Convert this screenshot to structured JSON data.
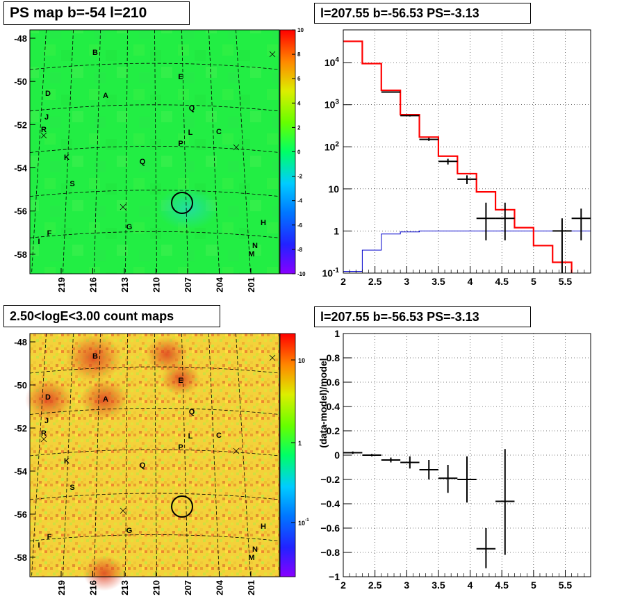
{
  "titles": {
    "tl": "PS map b=-54 l=210",
    "tr": "l=207.55 b=-56.53 PS=-3.13",
    "bl": "2.50<logE<3.00 count maps",
    "br": "l=207.55 b=-56.53 PS=-3.13"
  },
  "colors": {
    "model": "#ff0000",
    "background": "#0000cc",
    "data": "#000000"
  },
  "chart_data": [
    {
      "type": "heatmap",
      "title": "PS map b=-54 l=210",
      "xlabel": "",
      "ylabel": "",
      "x_ticks": [
        "219",
        "216",
        "213",
        "210",
        "207",
        "204",
        "201"
      ],
      "y_ticks": [
        "-48",
        "-50",
        "-52",
        "-54",
        "-56",
        "-58"
      ],
      "colorbar_ticks": [
        "10",
        "8",
        "6",
        "4",
        "2",
        "0",
        "-2",
        "-4",
        "-6",
        "-8",
        "-10"
      ],
      "colorbar_range": [
        -10,
        10
      ],
      "sources": [
        "B",
        "E",
        "D",
        "A",
        "Q",
        "J",
        "R",
        "L",
        "C",
        "P",
        "K",
        "Q",
        "S",
        "G",
        "H",
        "F",
        "I",
        "N",
        "M"
      ],
      "circle_position": {
        "l": 207.55,
        "b": -56.53
      }
    },
    {
      "type": "line",
      "title": "l=207.55 b=-56.53 PS=-3.13",
      "xlabel": "",
      "ylabel": "",
      "ylog": true,
      "xlim": [
        2,
        5.9
      ],
      "ylim": [
        0.1,
        60000
      ],
      "x_ticks": [
        "2",
        "2.5",
        "3",
        "3.5",
        "4",
        "4.5",
        "5",
        "5.5"
      ],
      "y_ticks": [
        "10^-1",
        "1",
        "10",
        "10^2",
        "10^3",
        "10^4"
      ],
      "series": [
        {
          "values": [
            {
              "x0": 2.0,
              "x1": 2.3,
              "y": 32000
            },
            {
              "x0": 2.3,
              "x1": 2.6,
              "y": 9500
            },
            {
              "x0": 2.6,
              "x1": 2.9,
              "y": 2200
            },
            {
              "x0": 2.9,
              "x1": 3.2,
              "y": 580
            },
            {
              "x0": 3.2,
              "x1": 3.5,
              "y": 170
            },
            {
              "x0": 3.5,
              "x1": 3.8,
              "y": 60
            },
            {
              "x0": 3.8,
              "x1": 4.1,
              "y": 23
            },
            {
              "x0": 4.1,
              "x1": 4.4,
              "y": 8.5
            },
            {
              "x0": 4.4,
              "x1": 4.7,
              "y": 3.2
            },
            {
              "x0": 4.7,
              "x1": 5.0,
              "y": 1.2
            },
            {
              "x0": 5.0,
              "x1": 5.3,
              "y": 0.45
            },
            {
              "x0": 5.3,
              "x1": 5.6,
              "y": 0.18
            },
            {
              "x0": 5.6,
              "x1": 5.9,
              "y": 0.07
            }
          ]
        },
        {
          "values": [
            {
              "x0": 2.0,
              "x1": 2.3,
              "y": 0.11
            },
            {
              "x0": 2.3,
              "x1": 2.6,
              "y": 0.35
            },
            {
              "x0": 2.6,
              "x1": 2.9,
              "y": 0.85
            },
            {
              "x0": 2.9,
              "x1": 3.2,
              "y": 0.95
            },
            {
              "x0": 3.2,
              "x1": 3.5,
              "y": 1.0
            },
            {
              "x0": 3.5,
              "x1": 3.8,
              "y": 1.0
            },
            {
              "x0": 3.8,
              "x1": 4.1,
              "y": 1.0
            },
            {
              "x0": 4.1,
              "x1": 4.4,
              "y": 1.0
            },
            {
              "x0": 4.4,
              "x1": 4.7,
              "y": 1.0
            },
            {
              "x0": 4.7,
              "x1": 5.0,
              "y": 1.0
            },
            {
              "x0": 5.0,
              "x1": 5.3,
              "y": 1.0
            },
            {
              "x0": 5.3,
              "x1": 5.6,
              "y": 1.0
            },
            {
              "x0": 5.6,
              "x1": 5.9,
              "y": 1.0
            }
          ]
        },
        {
          "values": [
            {
              "x": 2.15,
              "y": null
            },
            {
              "x": 2.45,
              "y": null
            },
            {
              "x": 2.75,
              "y": 2000,
              "xerr": 0.15,
              "ylo": 1950,
              "yhi": 2050
            },
            {
              "x": 3.05,
              "y": 550,
              "xerr": 0.15,
              "ylo": 525,
              "yhi": 575
            },
            {
              "x": 3.35,
              "y": 150,
              "xerr": 0.15,
              "ylo": 138,
              "yhi": 163
            },
            {
              "x": 3.65,
              "y": 45,
              "xerr": 0.15,
              "ylo": 38,
              "yhi": 52
            },
            {
              "x": 3.95,
              "y": 17,
              "xerr": 0.15,
              "ylo": 13,
              "yhi": 21
            },
            {
              "x": 4.25,
              "y": 2,
              "xerr": 0.15,
              "ylo": 0.6,
              "yhi": 4.7
            },
            {
              "x": 4.55,
              "y": 2,
              "xerr": 0.15,
              "ylo": 0.6,
              "yhi": 4.7
            },
            {
              "x": 5.45,
              "y": 1,
              "xerr": 0.15,
              "ylo": 0.1,
              "yhi": 2.0
            },
            {
              "x": 5.75,
              "y": 2,
              "xerr": 0.15,
              "ylo": 0.6,
              "yhi": 3.4
            }
          ]
        }
      ]
    },
    {
      "type": "heatmap",
      "title": "2.50<logE<3.00 count maps",
      "xlabel": "",
      "ylabel": "",
      "x_ticks": [
        "219",
        "216",
        "213",
        "210",
        "207",
        "204",
        "201"
      ],
      "y_ticks": [
        "-48",
        "-50",
        "-52",
        "-54",
        "-56",
        "-58"
      ],
      "colorbar_ticks": [
        "10",
        "1",
        "10^-1"
      ],
      "colorbar_log": true,
      "sources": [
        "B",
        "E",
        "D",
        "A",
        "Q",
        "J",
        "R",
        "L",
        "C",
        "P",
        "K",
        "Q",
        "S",
        "G",
        "H",
        "F",
        "I",
        "N",
        "M"
      ]
    },
    {
      "type": "scatter",
      "title": "l=207.55 b=-56.53 PS=-3.13",
      "xlabel": "",
      "ylabel": "(data-model)/model",
      "xlim": [
        2,
        5.9
      ],
      "ylim": [
        -1,
        1
      ],
      "x_ticks": [
        "2",
        "2.5",
        "3",
        "3.5",
        "4",
        "4.5",
        "5",
        "5.5"
      ],
      "y_ticks": [
        "1",
        "0.8",
        "0.6",
        "0.4",
        "0.2",
        "0",
        "-0.2",
        "-0.4",
        "-0.6",
        "-0.8",
        "-1"
      ],
      "series": [
        {
          "values": [
            {
              "x": 2.15,
              "y": 0.02,
              "xerr": 0.15,
              "ylo": 0.01,
              "yhi": 0.03
            },
            {
              "x": 2.45,
              "y": 0.0,
              "xerr": 0.15,
              "ylo": -0.01,
              "yhi": 0.01
            },
            {
              "x": 2.75,
              "y": -0.04,
              "xerr": 0.15,
              "ylo": -0.06,
              "yhi": -0.02
            },
            {
              "x": 3.05,
              "y": -0.06,
              "xerr": 0.15,
              "ylo": -0.11,
              "yhi": -0.01
            },
            {
              "x": 3.35,
              "y": -0.12,
              "xerr": 0.15,
              "ylo": -0.2,
              "yhi": -0.04
            },
            {
              "x": 3.65,
              "y": -0.19,
              "xerr": 0.15,
              "ylo": -0.31,
              "yhi": -0.08
            },
            {
              "x": 3.95,
              "y": -0.2,
              "xerr": 0.15,
              "ylo": -0.39,
              "yhi": -0.01
            },
            {
              "x": 4.25,
              "y": -0.77,
              "xerr": 0.15,
              "ylo": -0.93,
              "yhi": -0.6
            },
            {
              "x": 4.55,
              "y": -0.38,
              "xerr": 0.15,
              "ylo": -0.82,
              "yhi": 0.05
            }
          ]
        }
      ]
    }
  ]
}
